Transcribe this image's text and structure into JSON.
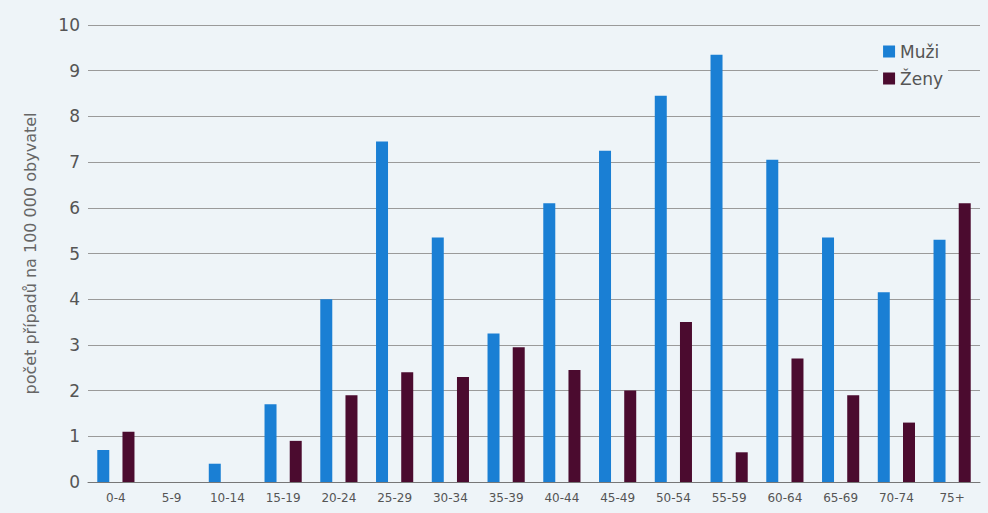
{
  "chart_data": {
    "type": "bar",
    "y_label": "počet případů na 100 000 obyvatel",
    "categories": [
      "0-4",
      "5-9",
      "10-14",
      "15-19",
      "20-24",
      "25-29",
      "30-34",
      "35-39",
      "40-44",
      "45-49",
      "50-54",
      "55-59",
      "60-64",
      "65-69",
      "70-74",
      "75+"
    ],
    "series": [
      {
        "name": "Muži",
        "color": "#1a7fd4",
        "values": [
          0.7,
          0,
          0.4,
          1.7,
          4.0,
          7.45,
          5.35,
          3.25,
          6.1,
          7.25,
          8.45,
          9.35,
          7.05,
          5.35,
          4.15,
          5.3
        ]
      },
      {
        "name": "Ženy",
        "color": "#4b0b2f",
        "values": [
          1.1,
          0,
          0,
          0.9,
          1.9,
          2.4,
          2.3,
          2.95,
          2.45,
          2.0,
          3.5,
          0.65,
          2.7,
          1.9,
          1.3,
          6.1
        ]
      }
    ],
    "ylim": [
      0,
      10
    ],
    "yticks": [
      0,
      1,
      2,
      3,
      4,
      5,
      6,
      7,
      8,
      9,
      10
    ],
    "grid": true,
    "legend": "upper right"
  }
}
